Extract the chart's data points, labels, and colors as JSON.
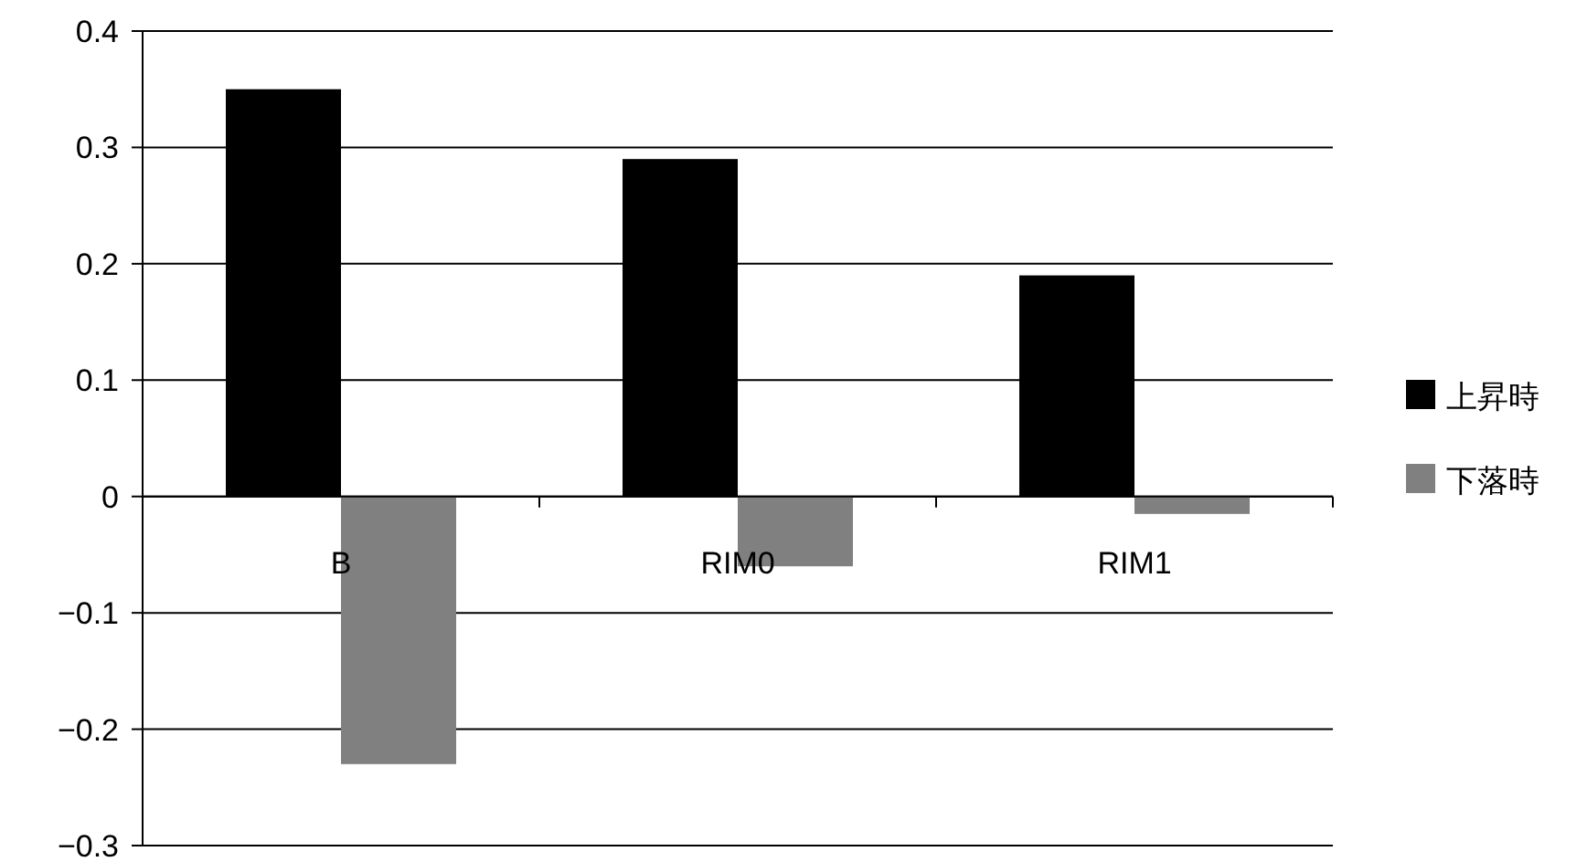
{
  "chart_data": {
    "type": "bar",
    "categories": [
      "B",
      "RIM0",
      "RIM1"
    ],
    "series": [
      {
        "name": "上昇時",
        "color": "#000000",
        "values": [
          0.35,
          0.29,
          0.19
        ]
      },
      {
        "name": "下落時",
        "color": "#808080",
        "values": [
          -0.23,
          -0.06,
          -0.015
        ]
      }
    ],
    "ylim": [
      -0.3,
      0.4
    ],
    "yticks": [
      {
        "value": -0.3,
        "label": "−0.3"
      },
      {
        "value": -0.2,
        "label": "−0.2"
      },
      {
        "value": -0.1,
        "label": "−0.1"
      },
      0,
      0.1,
      0.2,
      0.3,
      0.4
    ],
    "grid": "y",
    "legend": "right"
  }
}
